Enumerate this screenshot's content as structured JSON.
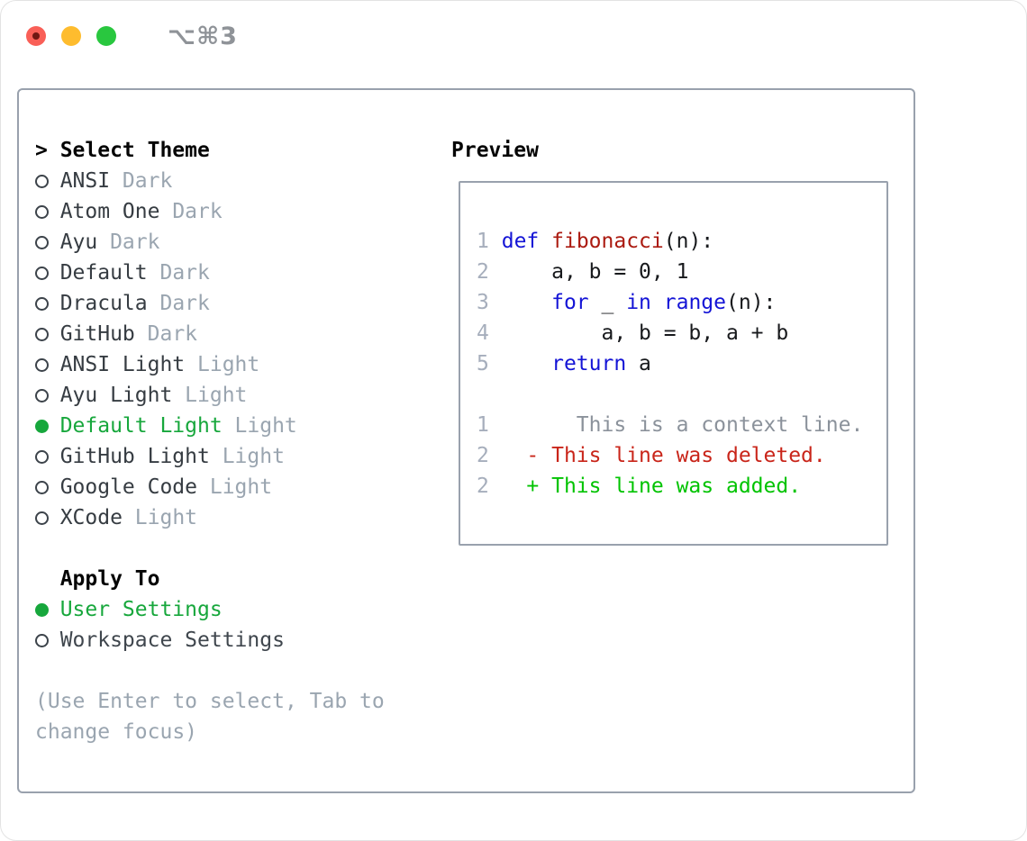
{
  "titlebar": {
    "shortcut": "⌥⌘3"
  },
  "panel": {
    "select_theme": {
      "cursor": ">",
      "header": "Select Theme",
      "items": [
        {
          "name": "ANSI",
          "tag": "Dark",
          "selected": false
        },
        {
          "name": "Atom One",
          "tag": "Dark",
          "selected": false
        },
        {
          "name": "Ayu",
          "tag": "Dark",
          "selected": false
        },
        {
          "name": "Default",
          "tag": "Dark",
          "selected": false
        },
        {
          "name": "Dracula",
          "tag": "Dark",
          "selected": false
        },
        {
          "name": "GitHub",
          "tag": "Dark",
          "selected": false
        },
        {
          "name": "ANSI Light",
          "tag": "Light",
          "selected": false
        },
        {
          "name": "Ayu Light",
          "tag": "Light",
          "selected": false
        },
        {
          "name": "Default Light",
          "tag": "Light",
          "selected": true
        },
        {
          "name": "GitHub Light",
          "tag": "Light",
          "selected": false
        },
        {
          "name": "Google Code",
          "tag": "Light",
          "selected": false
        },
        {
          "name": "XCode",
          "tag": "Light",
          "selected": false
        }
      ]
    },
    "apply_to": {
      "header": "Apply To",
      "options": [
        {
          "label": "User Settings",
          "selected": true
        },
        {
          "label": "Workspace Settings",
          "selected": false
        }
      ]
    },
    "hint": "(Use Enter to select, Tab to change focus)",
    "preview": {
      "title": "Preview",
      "code_lines": [
        {
          "num": "1",
          "segments": [
            {
              "text": "def",
              "style": "keyword"
            },
            {
              "text": " ",
              "style": "plain"
            },
            {
              "text": "fibonacci",
              "style": "function"
            },
            {
              "text": "(n):",
              "style": "plain"
            }
          ]
        },
        {
          "num": "2",
          "segments": [
            {
              "text": "    a, b = 0, 1",
              "style": "plain"
            }
          ]
        },
        {
          "num": "3",
          "segments": [
            {
              "text": "    ",
              "style": "plain"
            },
            {
              "text": "for",
              "style": "keyword"
            },
            {
              "text": " _ ",
              "style": "plain"
            },
            {
              "text": "in",
              "style": "keyword"
            },
            {
              "text": " ",
              "style": "plain"
            },
            {
              "text": "range",
              "style": "keyword"
            },
            {
              "text": "(n):",
              "style": "plain"
            }
          ]
        },
        {
          "num": "4",
          "segments": [
            {
              "text": "        a, b = b, a + b",
              "style": "plain"
            }
          ]
        },
        {
          "num": "5",
          "segments": [
            {
              "text": "    ",
              "style": "plain"
            },
            {
              "text": "return",
              "style": "keyword"
            },
            {
              "text": " a",
              "style": "plain"
            }
          ]
        },
        {
          "num": "",
          "segments": []
        },
        {
          "num": "1",
          "segments": [
            {
              "text": "      This is a context line.",
              "style": "context"
            }
          ]
        },
        {
          "num": "2",
          "segments": [
            {
              "text": "  - This line was deleted.",
              "style": "deleted"
            }
          ]
        },
        {
          "num": "2",
          "segments": [
            {
              "text": "  + This line was added.",
              "style": "added"
            }
          ]
        }
      ]
    }
  },
  "colors": {
    "selection_green": "#17a73c",
    "added_green": "#00c300",
    "deleted_red": "#c9251a",
    "keyword_blue": "#1414d6",
    "function_red": "#ab1a10",
    "muted_gray": "#9aa5b0",
    "panel_border_gray": "#99a1ad",
    "traffic_red": "#f95f57",
    "traffic_yellow": "#febc2e",
    "traffic_green": "#29c73f"
  }
}
